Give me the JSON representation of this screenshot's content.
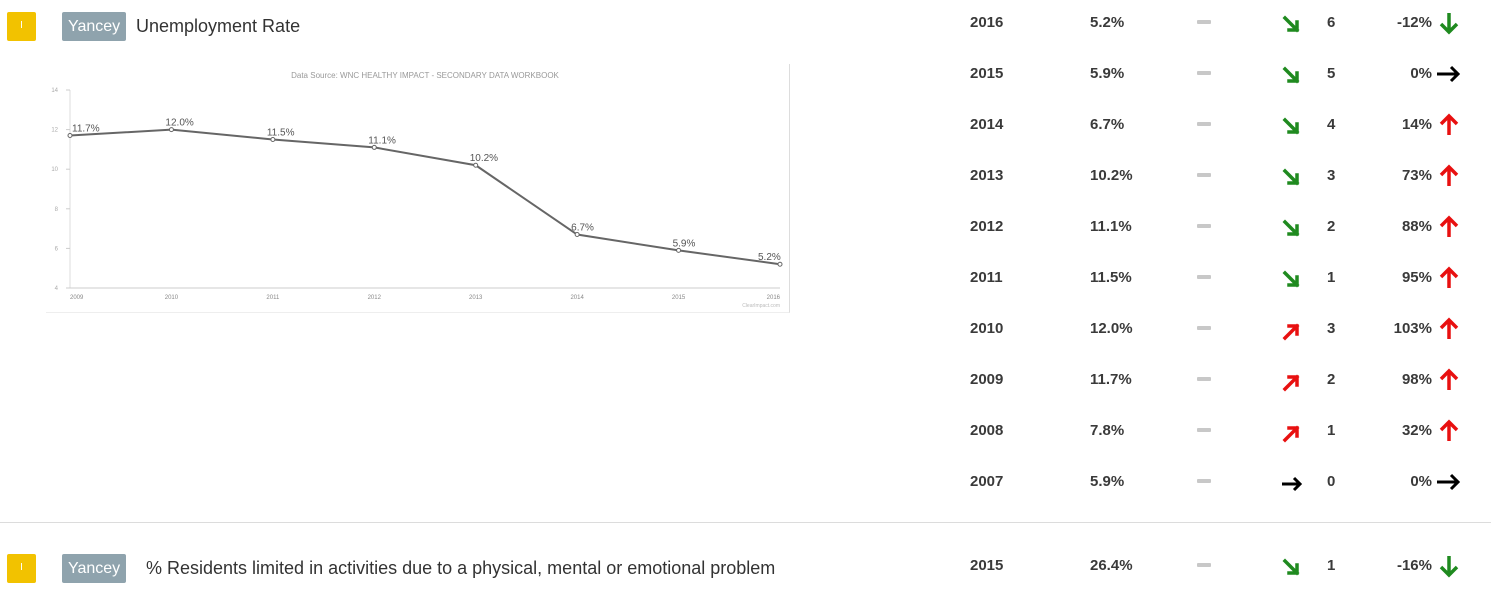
{
  "indicators": [
    {
      "badge": "I",
      "county": "Yancey",
      "title": "Unemployment Rate",
      "rows": [
        {
          "year": "2016",
          "value": "5.2%",
          "trend_dir": "down",
          "trend_count": "6",
          "pct": "-12%",
          "pct_dir": "down"
        },
        {
          "year": "2015",
          "value": "5.9%",
          "trend_dir": "down",
          "trend_count": "5",
          "pct": "0%",
          "pct_dir": "flat"
        },
        {
          "year": "2014",
          "value": "6.7%",
          "trend_dir": "down",
          "trend_count": "4",
          "pct": "14%",
          "pct_dir": "up"
        },
        {
          "year": "2013",
          "value": "10.2%",
          "trend_dir": "down",
          "trend_count": "3",
          "pct": "73%",
          "pct_dir": "up"
        },
        {
          "year": "2012",
          "value": "11.1%",
          "trend_dir": "down",
          "trend_count": "2",
          "pct": "88%",
          "pct_dir": "up"
        },
        {
          "year": "2011",
          "value": "11.5%",
          "trend_dir": "down",
          "trend_count": "1",
          "pct": "95%",
          "pct_dir": "up"
        },
        {
          "year": "2010",
          "value": "12.0%",
          "trend_dir": "up",
          "trend_count": "3",
          "pct": "103%",
          "pct_dir": "up"
        },
        {
          "year": "2009",
          "value": "11.7%",
          "trend_dir": "up",
          "trend_count": "2",
          "pct": "98%",
          "pct_dir": "up"
        },
        {
          "year": "2008",
          "value": "7.8%",
          "trend_dir": "up",
          "trend_count": "1",
          "pct": "32%",
          "pct_dir": "up"
        },
        {
          "year": "2007",
          "value": "5.9%",
          "trend_dir": "flat",
          "trend_count": "0",
          "pct": "0%",
          "pct_dir": "flat"
        }
      ]
    },
    {
      "badge": "I",
      "county": "Yancey",
      "title": "% Residents limited in activities due to a physical, mental or emotional problem",
      "rows": [
        {
          "year": "2015",
          "value": "26.4%",
          "trend_dir": "down",
          "trend_count": "1",
          "pct": "-16%",
          "pct_dir": "down"
        }
      ]
    }
  ],
  "colors": {
    "badge": "#f2c200",
    "tag": "#8fa3ad",
    "green": "#1f8a1f",
    "red": "#e81010",
    "black": "#000000",
    "line": "#666666"
  },
  "chart_data": {
    "type": "line",
    "title": "Data Source: WNC HEALTHY IMPACT - SECONDARY DATA WORKBOOK",
    "x": [
      "2009",
      "2010",
      "2011",
      "2012",
      "2013",
      "2014",
      "2015",
      "2016"
    ],
    "series": [
      {
        "values": [
          11.7,
          12.0,
          11.5,
          11.1,
          10.2,
          6.7,
          5.9,
          5.2
        ]
      }
    ],
    "data_labels": [
      "11.7%",
      "12.0%",
      "11.5%",
      "11.1%",
      "10.2%",
      "6.7%",
      "5.9%",
      "5.2%"
    ],
    "yticks": [
      "4",
      "6",
      "8",
      "10",
      "12",
      "14"
    ],
    "ylim": [
      4,
      14
    ],
    "watermark": "ClearImpact.com",
    "grid": false
  }
}
